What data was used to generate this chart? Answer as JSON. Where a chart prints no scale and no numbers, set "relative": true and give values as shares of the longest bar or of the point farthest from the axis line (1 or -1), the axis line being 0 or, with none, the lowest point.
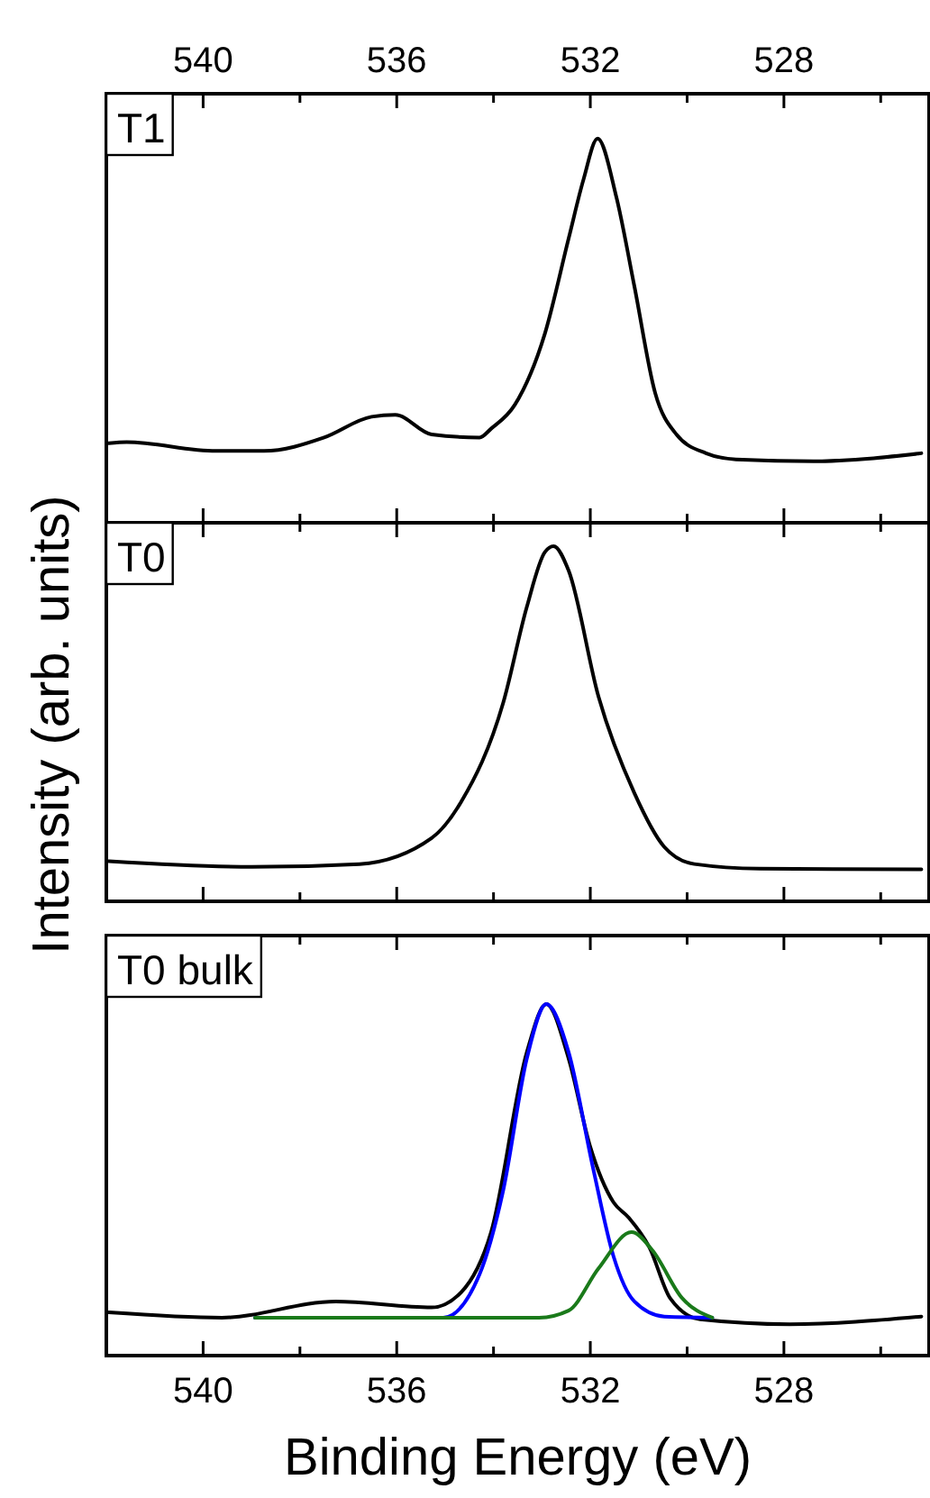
{
  "chart_data": [
    {
      "type": "line",
      "relative": true,
      "xlim": [
        542,
        525
      ],
      "xticks": [
        540,
        {
          "value": 538,
          "label": null
        },
        536,
        {
          "value": 534,
          "label": null
        },
        532,
        {
          "value": 530,
          "label": null
        },
        528,
        {
          "value": 526,
          "label": null
        }
      ],
      "x2lim": [
        542,
        525
      ],
      "x2ticks": [
        540,
        {
          "value": 538,
          "label": null
        },
        536,
        {
          "value": 534,
          "label": null
        },
        532,
        {
          "value": 530,
          "label": null
        },
        528,
        {
          "value": 526,
          "label": null
        }
      ],
      "tick_labels": false,
      "grid": false,
      "marker": "none",
      "line_style": "solid",
      "annotations": [
        "T1"
      ],
      "series": [
        {
          "color": "#000000",
          "x": [
            541.95,
            541.58,
            539.73,
            538.74,
            537.5,
            536.52,
            536.03,
            535.28,
            534.29,
            534.05,
            533.56,
            532.94,
            532.45,
            532.14,
            531.85,
            531.46,
            531.09,
            530.66,
            530.22,
            529.61,
            528.99,
            527.39,
            526.15,
            525.16
          ],
          "values": [
            0.207,
            0.21,
            0.187,
            0.187,
            0.222,
            0.276,
            0.281,
            0.23,
            0.222,
            0.245,
            0.307,
            0.492,
            0.739,
            0.894,
            1,
            0.847,
            0.616,
            0.338,
            0.23,
            0.181,
            0.165,
            0.16,
            0.168,
            0.181
          ]
        }
      ]
    },
    {
      "type": "line",
      "relative": true,
      "xlim": [
        542,
        525
      ],
      "xticks": [
        540,
        {
          "value": 538,
          "label": null
        },
        536,
        {
          "value": 534,
          "label": null
        },
        532,
        {
          "value": 530,
          "label": null
        },
        528,
        {
          "value": 526,
          "label": null
        }
      ],
      "tick_labels": false,
      "grid": false,
      "marker": "none",
      "line_style": "solid",
      "ylabel": "Intensity (arb. units)",
      "annotations": [
        "T0"
      ],
      "series": [
        {
          "color": "#000000",
          "x": [
            541.95,
            538.99,
            536.77,
            535.28,
            534.67,
            533.8,
            533.31,
            532.94,
            532.76,
            532.45,
            531.83,
            531.09,
            530.47,
            529.85,
            528.5,
            525.16
          ],
          "values": [
            0.113,
            0.097,
            0.105,
            0.178,
            0.28,
            0.559,
            0.83,
            0.983,
            1,
            0.932,
            0.576,
            0.305,
            0.153,
            0.105,
            0.092,
            0.09
          ]
        }
      ]
    },
    {
      "type": "line",
      "relative": true,
      "xlim": [
        542,
        525
      ],
      "xticks": [
        540,
        {
          "value": 538,
          "label": null
        },
        536,
        {
          "value": 534,
          "label": null
        },
        532,
        {
          "value": 530,
          "label": null
        },
        528,
        {
          "value": 526,
          "label": null
        }
      ],
      "tick_labels": "x",
      "grid": false,
      "marker": "none",
      "line_style": "solid",
      "xlabel": "Binding Energy (eV)",
      "annotations": [
        "T0 bulk"
      ],
      "series": [
        {
          "color": "#000000",
          "x": [
            541.95,
            539.61,
            537.26,
            535.28,
            534.67,
            534.05,
            533.31,
            532.91,
            532.45,
            532.01,
            531.52,
            531.21,
            530.78,
            530.35,
            529.73,
            527.88,
            525.16
          ],
          "values": [
            0.123,
            0.108,
            0.154,
            0.137,
            0.18,
            0.351,
            0.864,
            1,
            0.846,
            0.598,
            0.436,
            0.393,
            0.308,
            0.163,
            0.103,
            0.089,
            0.111
          ]
        },
        {
          "color": "#0000ff",
          "x": [
            538.93,
            535.04,
            534.29,
            533.8,
            533.31,
            532.91,
            532.45,
            531.95,
            531.52,
            531.09,
            530.47,
            529.48
          ],
          "values": [
            0.108,
            0.108,
            0.231,
            0.47,
            0.846,
            1,
            0.864,
            0.538,
            0.282,
            0.154,
            0.111,
            0.108
          ]
        },
        {
          "color": "#1a7a1a",
          "x": [
            538.93,
            533.06,
            532.45,
            531.83,
            531.15,
            530.72,
            530.1,
            529.48
          ],
          "values": [
            0.108,
            0.108,
            0.128,
            0.248,
            0.351,
            0.3,
            0.163,
            0.108
          ]
        }
      ]
    }
  ]
}
